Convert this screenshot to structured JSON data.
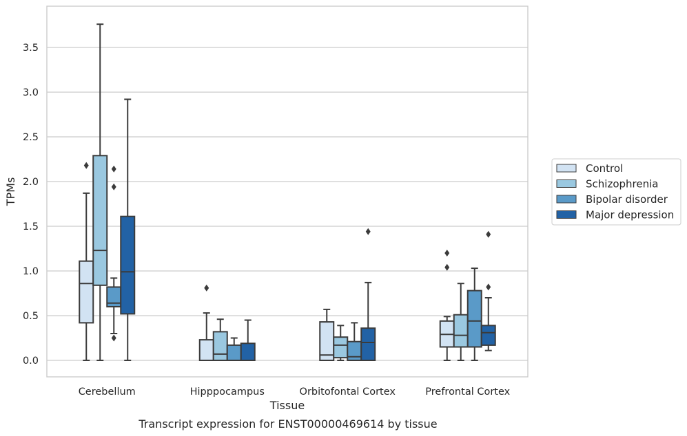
{
  "chart_data": {
    "type": "boxplot",
    "caption": "Transcript expression for ENST00000469614 by tissue",
    "xlabel": "Tissue",
    "ylabel": "TPMs",
    "ylim": [
      -0.18,
      3.88
    ],
    "yticks": [
      0.0,
      0.5,
      1.0,
      1.5,
      2.0,
      2.5,
      3.0,
      3.5
    ],
    "ytick_labels": [
      "0.0",
      "0.5",
      "1.0",
      "1.5",
      "2.0",
      "2.5",
      "3.0",
      "3.5"
    ],
    "grid": "horizontal",
    "legend_position": "right",
    "categories": [
      "Cerebellum",
      "Hipppocampus",
      "Orbitofontal Cortex",
      "Prefrontal Cortex"
    ],
    "series": [
      {
        "name": "Control",
        "color": "#d2e3f3",
        "boxes": [
          {
            "whislo": 0.0,
            "q1": 0.42,
            "med": 0.86,
            "q3": 1.11,
            "whishi": 1.87,
            "fliers": [
              2.18
            ]
          },
          {
            "whislo": 0.0,
            "q1": 0.0,
            "med": 0.0,
            "q3": 0.23,
            "whishi": 0.53,
            "fliers": [
              0.81
            ]
          },
          {
            "whislo": 0.0,
            "q1": 0.0,
            "med": 0.06,
            "q3": 0.43,
            "whishi": 0.57,
            "fliers": []
          },
          {
            "whislo": 0.0,
            "q1": 0.15,
            "med": 0.29,
            "q3": 0.44,
            "whishi": 0.49,
            "fliers": [
              1.04,
              1.2
            ]
          }
        ]
      },
      {
        "name": "Schizophrenia",
        "color": "#9ac8e0",
        "boxes": [
          {
            "whislo": 0.0,
            "q1": 0.84,
            "med": 1.23,
            "q3": 2.29,
            "whishi": 3.76,
            "fliers": []
          },
          {
            "whislo": 0.0,
            "q1": 0.0,
            "med": 0.07,
            "q3": 0.32,
            "whishi": 0.46,
            "fliers": []
          },
          {
            "whislo": 0.0,
            "q1": 0.03,
            "med": 0.17,
            "q3": 0.26,
            "whishi": 0.39,
            "fliers": []
          },
          {
            "whislo": 0.0,
            "q1": 0.15,
            "med": 0.28,
            "q3": 0.51,
            "whishi": 0.86,
            "fliers": []
          }
        ]
      },
      {
        "name": "Bipolar disorder",
        "color": "#5a9ac8",
        "boxes": [
          {
            "whislo": 0.3,
            "q1": 0.6,
            "med": 0.64,
            "q3": 0.82,
            "whishi": 0.92,
            "fliers": [
              0.25,
              1.94,
              2.14
            ]
          },
          {
            "whislo": 0.0,
            "q1": 0.0,
            "med": 0.0,
            "q3": 0.17,
            "whishi": 0.25,
            "fliers": []
          },
          {
            "whislo": 0.0,
            "q1": 0.0,
            "med": 0.04,
            "q3": 0.21,
            "whishi": 0.42,
            "fliers": []
          },
          {
            "whislo": 0.0,
            "q1": 0.15,
            "med": 0.44,
            "q3": 0.78,
            "whishi": 1.03,
            "fliers": []
          }
        ]
      },
      {
        "name": "Major depression",
        "color": "#2262a5",
        "boxes": [
          {
            "whislo": 0.0,
            "q1": 0.52,
            "med": 0.99,
            "q3": 1.61,
            "whishi": 2.92,
            "fliers": []
          },
          {
            "whislo": 0.0,
            "q1": 0.0,
            "med": 0.0,
            "q3": 0.19,
            "whishi": 0.45,
            "fliers": []
          },
          {
            "whislo": 0.0,
            "q1": 0.0,
            "med": 0.2,
            "q3": 0.36,
            "whishi": 0.87,
            "fliers": [
              1.44
            ]
          },
          {
            "whislo": 0.11,
            "q1": 0.17,
            "med": 0.31,
            "q3": 0.39,
            "whishi": 0.7,
            "fliers": [
              0.82,
              1.41
            ]
          }
        ]
      }
    ]
  }
}
